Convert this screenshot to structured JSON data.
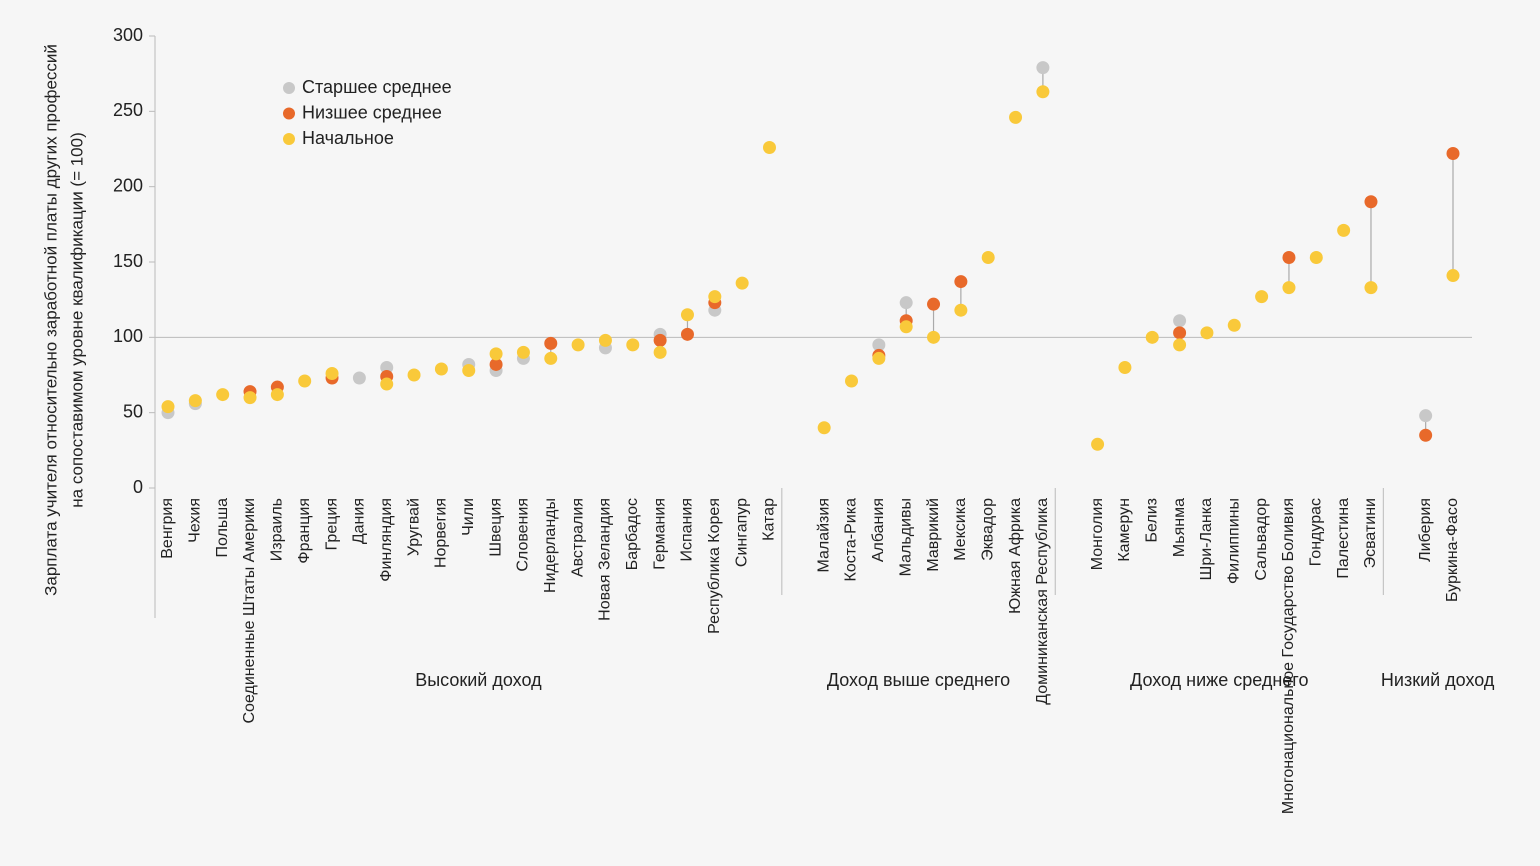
{
  "chart_data": {
    "type": "dot",
    "y_label_lines": [
      "Зарплата учителя относительно заработной платы других профессий",
      "на сопоставимом уровне квалификации (= 100)"
    ],
    "groups": [
      "Высокий доход",
      "Доход выше среднего",
      "Доход ниже среднего",
      "Низкий доход"
    ],
    "categories": [
      "Венгрия",
      "Чехия",
      "Польша",
      "Соединенные Штаты Америки",
      "Израиль",
      "Франция",
      "Греция",
      "Дания",
      "Финляндия",
      "Уругвай",
      "Норвегия",
      "Чили",
      "Швеция",
      "Словения",
      "Нидерланды",
      "Австралия",
      "Новая Зеландия",
      "Барбадос",
      "Германия",
      "Испания",
      "Республика Корея",
      "Сингапур",
      "Катар",
      null,
      "Малайзия",
      "Коста-Рика",
      "Албания",
      "Мальдивы",
      "Маврикий",
      "Мексика",
      "Эквадор",
      "Южная Африка",
      "Доминиканская Республика",
      null,
      "Монголия",
      "Камерун",
      "Белиз",
      "Мьянма",
      "Шри-Ланка",
      "Филиппины",
      "Сальвадор",
      "Многонациональное Государство Боливия",
      "Гондурас",
      "Палестина",
      "Эсватини",
      null,
      "Либерия",
      "Буркина-Фасо"
    ],
    "series": [
      {
        "name": "Старшее среднее",
        "color": "#c8c8c8",
        "values": [
          50,
          56,
          null,
          null,
          null,
          null,
          null,
          73,
          80,
          null,
          null,
          82,
          78,
          86,
          null,
          null,
          93,
          null,
          102,
          null,
          118,
          null,
          null,
          null,
          null,
          null,
          95,
          123,
          null,
          null,
          null,
          null,
          279,
          null,
          null,
          null,
          null,
          111,
          null,
          null,
          null,
          null,
          null,
          null,
          null,
          null,
          48,
          null
        ]
      },
      {
        "name": "Низшее среднее",
        "color": "#e8692a",
        "values": [
          null,
          null,
          null,
          64,
          67,
          null,
          73,
          null,
          74,
          null,
          null,
          null,
          82,
          null,
          96,
          null,
          null,
          null,
          98,
          102,
          123,
          null,
          null,
          null,
          null,
          null,
          88,
          111,
          122,
          137,
          null,
          null,
          null,
          null,
          null,
          null,
          null,
          103,
          null,
          null,
          null,
          153,
          null,
          null,
          190,
          null,
          35,
          222
        ]
      },
      {
        "name": "Начальное",
        "color": "#f9c93a",
        "values": [
          54,
          58,
          62,
          60,
          62,
          71,
          76,
          null,
          69,
          75,
          79,
          78,
          89,
          90,
          86,
          95,
          98,
          95,
          90,
          115,
          127,
          136,
          226,
          null,
          40,
          71,
          86,
          107,
          100,
          118,
          153,
          246,
          263,
          null,
          29,
          80,
          100,
          95,
          103,
          108,
          127,
          133,
          153,
          171,
          133,
          null,
          null,
          141
        ]
      }
    ],
    "ylim": [
      0,
      300
    ],
    "yticks": [
      0,
      50,
      100,
      150,
      200,
      250,
      300
    ],
    "reference_line": 100
  }
}
